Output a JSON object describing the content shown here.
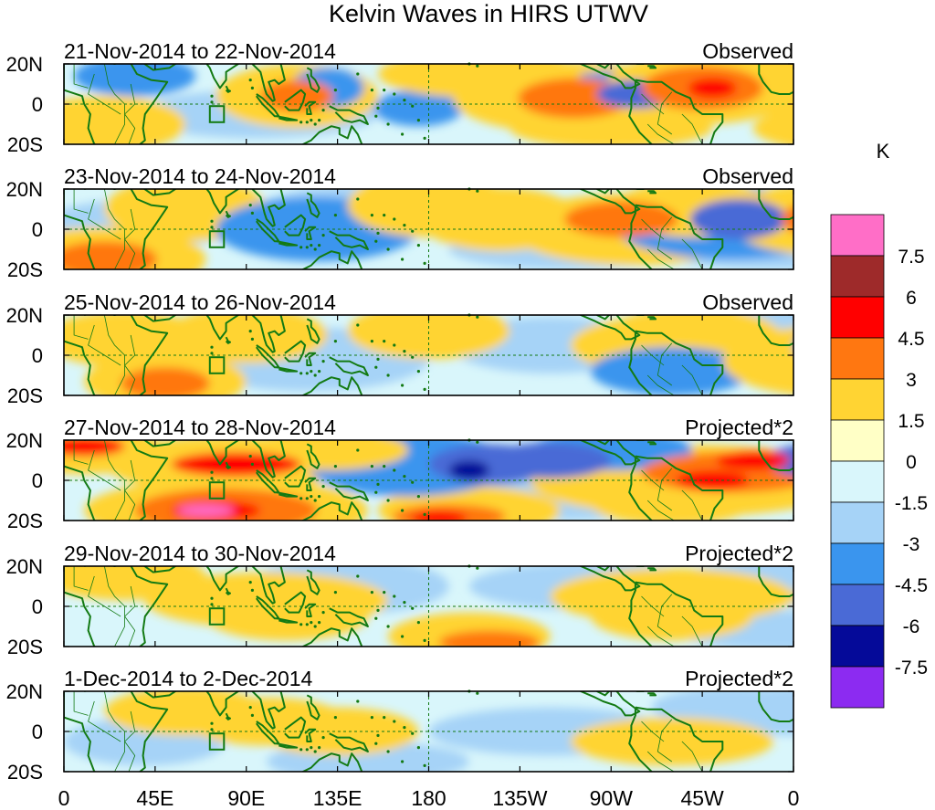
{
  "title": "Kelvin Waves in HIRS UTWV",
  "units_label": "K",
  "lat_ticks": [
    "20N",
    "0",
    "20S"
  ],
  "lon_ticks": [
    "0",
    "45E",
    "90E",
    "135E",
    "180",
    "135W",
    "90W",
    "45W",
    "0"
  ],
  "panels": [
    {
      "date_range": "21-Nov-2014 to 22-Nov-2014",
      "kind": "Observed"
    },
    {
      "date_range": "23-Nov-2014 to 24-Nov-2014",
      "kind": "Observed"
    },
    {
      "date_range": "25-Nov-2014 to 26-Nov-2014",
      "kind": "Observed"
    },
    {
      "date_range": "27-Nov-2014 to 28-Nov-2014",
      "kind": "Projected*2"
    },
    {
      "date_range": "29-Nov-2014 to 30-Nov-2014",
      "kind": "Projected*2"
    },
    {
      "date_range": "1-Dec-2014 to 2-Dec-2014",
      "kind": "Projected*2"
    }
  ],
  "colorbar": {
    "colors": [
      "#ff6ec7",
      "#9e2a2a",
      "#ff0000",
      "#ff7711",
      "#ffd433",
      "#ffffc6",
      "#d9f6fb",
      "#a6d3f7",
      "#3a95ee",
      "#4a6ad6",
      "#050a99",
      "#8c2bf1"
    ],
    "labels": [
      "7.5",
      "6",
      "4.5",
      "3",
      "1.5",
      "0",
      "-1.5",
      "-3",
      "-4.5",
      "-6",
      "-7.5"
    ]
  },
  "blob_colors": {
    "8": "#ff6ec7",
    "7": "#9e2a2a",
    "6": "#ff0000",
    "5": "#ff7711",
    "4": "#ffd433",
    "3": "#ffffc6",
    "-3": "#a6d3f7",
    "-4": "#3a95ee",
    "-5": "#4a6ad6",
    "-6": "#050a99"
  },
  "anomaly_features": [
    [
      [
        115,
        4,
        4,
        40,
        16
      ],
      [
        115,
        4,
        5,
        18,
        8
      ],
      [
        175,
        -2,
        -4,
        22,
        9
      ],
      [
        130,
        8,
        -4,
        18,
        10
      ],
      [
        252,
        3,
        4,
        60,
        18
      ],
      [
        252,
        3,
        5,
        28,
        10
      ],
      [
        283,
        5,
        -4,
        48,
        12
      ],
      [
        283,
        5,
        -5,
        20,
        7
      ],
      [
        315,
        8,
        4,
        48,
        18
      ],
      [
        315,
        8,
        5,
        30,
        11
      ],
      [
        320,
        8,
        6,
        12,
        5
      ],
      [
        205,
        15,
        4,
        50,
        12
      ],
      [
        35,
        14,
        -4,
        30,
        10
      ],
      [
        95,
        -5,
        -3,
        60,
        12
      ],
      [
        270,
        -12,
        4,
        50,
        10
      ],
      [
        355,
        15,
        4,
        40,
        12
      ],
      [
        410,
        -12,
        4,
        70,
        14
      ],
      [
        410,
        -12,
        5,
        35,
        9
      ],
      [
        380,
        5,
        4,
        50,
        14
      ],
      [
        20,
        -10,
        4,
        40,
        14
      ]
    ],
    [
      [
        20,
        -15,
        4,
        50,
        16
      ],
      [
        20,
        -15,
        5,
        26,
        9
      ],
      [
        60,
        10,
        4,
        40,
        16
      ],
      [
        125,
        0,
        -4,
        50,
        16
      ],
      [
        145,
        8,
        -3,
        50,
        14
      ],
      [
        180,
        12,
        4,
        40,
        16
      ],
      [
        215,
        5,
        4,
        40,
        16
      ],
      [
        280,
        0,
        4,
        60,
        18
      ],
      [
        275,
        5,
        5,
        28,
        9
      ],
      [
        330,
        3,
        -4,
        60,
        18
      ],
      [
        333,
        5,
        -5,
        24,
        10
      ],
      [
        375,
        5,
        4,
        48,
        18
      ],
      [
        380,
        5,
        5,
        26,
        10
      ],
      [
        420,
        5,
        4,
        50,
        16
      ],
      [
        40,
        3,
        -3,
        50,
        12
      ],
      [
        250,
        -10,
        -3,
        60,
        10
      ],
      [
        350,
        -10,
        -3,
        60,
        10
      ],
      [
        310,
        10,
        4,
        40,
        14
      ]
    ],
    [
      [
        50,
        -13,
        4,
        40,
        14
      ],
      [
        50,
        -14,
        5,
        22,
        8
      ],
      [
        30,
        8,
        4,
        40,
        14
      ],
      [
        90,
        10,
        4,
        40,
        14
      ],
      [
        120,
        -2,
        -3,
        60,
        16
      ],
      [
        180,
        12,
        4,
        40,
        14
      ],
      [
        240,
        5,
        -3,
        50,
        14
      ],
      [
        290,
        5,
        4,
        40,
        14
      ],
      [
        310,
        8,
        4,
        45,
        16
      ],
      [
        300,
        -8,
        -4,
        40,
        12
      ],
      [
        380,
        -3,
        4,
        55,
        18
      ],
      [
        420,
        5,
        -4,
        60,
        16
      ],
      [
        360,
        15,
        -3,
        40,
        10
      ],
      [
        470,
        10,
        -3,
        50,
        14
      ],
      [
        455,
        -5,
        4,
        40,
        12
      ]
    ],
    [
      [
        10,
        15,
        4,
        40,
        12
      ],
      [
        10,
        17,
        6,
        20,
        5
      ],
      [
        80,
        8,
        4,
        60,
        14
      ],
      [
        85,
        8,
        6,
        32,
        6
      ],
      [
        80,
        -15,
        4,
        70,
        16
      ],
      [
        80,
        -15,
        5,
        45,
        11
      ],
      [
        75,
        -15,
        6,
        22,
        5
      ],
      [
        70,
        -15,
        8,
        14,
        3
      ],
      [
        200,
        -15,
        4,
        45,
        12
      ],
      [
        190,
        -18,
        5,
        28,
        6
      ],
      [
        185,
        -19,
        6,
        14,
        4
      ],
      [
        170,
        8,
        -4,
        50,
        16
      ],
      [
        210,
        8,
        -5,
        30,
        10
      ],
      [
        200,
        5,
        -6,
        10,
        5
      ],
      [
        240,
        10,
        -5,
        30,
        9
      ],
      [
        310,
        0,
        4,
        80,
        18
      ],
      [
        330,
        4,
        5,
        45,
        10
      ],
      [
        320,
        0,
        6,
        18,
        5
      ],
      [
        340,
        10,
        6,
        18,
        5
      ],
      [
        240,
        -10,
        -3,
        70,
        10
      ],
      [
        390,
        10,
        -5,
        45,
        10
      ],
      [
        420,
        -8,
        -3,
        60,
        12
      ],
      [
        270,
        15,
        -4,
        40,
        10
      ],
      [
        130,
        15,
        4,
        40,
        10
      ],
      [
        300,
        -12,
        4,
        40,
        10
      ],
      [
        430,
        -15,
        5,
        16,
        5
      ],
      [
        460,
        10,
        -3,
        50,
        12
      ]
    ],
    [
      [
        30,
        15,
        4,
        40,
        12
      ],
      [
        100,
        3,
        4,
        60,
        14
      ],
      [
        110,
        -5,
        4,
        40,
        12
      ],
      [
        140,
        10,
        -3,
        50,
        14
      ],
      [
        200,
        -15,
        4,
        40,
        12
      ],
      [
        210,
        -18,
        5,
        25,
        6
      ],
      [
        260,
        10,
        -3,
        60,
        12
      ],
      [
        300,
        5,
        4,
        60,
        14
      ],
      [
        300,
        -5,
        4,
        40,
        12
      ],
      [
        360,
        12,
        -3,
        60,
        12
      ],
      [
        400,
        5,
        4,
        40,
        12
      ],
      [
        460,
        0,
        -3,
        60,
        14
      ],
      [
        420,
        -10,
        4,
        40,
        10
      ],
      [
        360,
        -12,
        -3,
        60,
        10
      ],
      [
        500,
        10,
        4,
        30,
        10
      ]
    ],
    [
      [
        60,
        10,
        4,
        40,
        12
      ],
      [
        100,
        5,
        4,
        40,
        12
      ],
      [
        135,
        0,
        4,
        40,
        12
      ],
      [
        40,
        -5,
        -3,
        40,
        12
      ],
      [
        240,
        0,
        -3,
        60,
        12
      ],
      [
        300,
        -5,
        4,
        50,
        12
      ],
      [
        360,
        10,
        -3,
        50,
        12
      ],
      [
        420,
        5,
        4,
        40,
        12
      ],
      [
        470,
        -12,
        -3,
        50,
        10
      ],
      [
        150,
        -15,
        -3,
        50,
        10
      ],
      [
        330,
        12,
        -3,
        40,
        10
      ]
    ]
  ]
}
